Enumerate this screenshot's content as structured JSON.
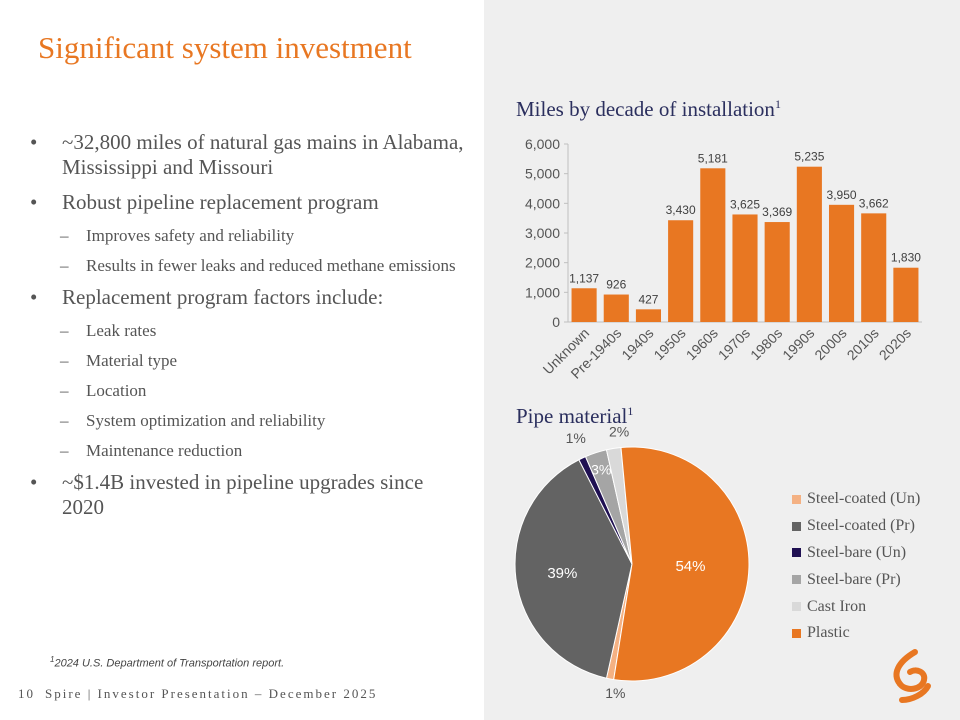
{
  "slide": {
    "title": "Significant system investment",
    "bullets": [
      {
        "level": 1,
        "text": "~32,800 miles of natural gas mains in Alabama, Mississippi and Missouri"
      },
      {
        "level": 1,
        "text": "Robust pipeline replacement program"
      },
      {
        "level": 2,
        "text": "Improves safety and reliability"
      },
      {
        "level": 2,
        "text": "Results in fewer leaks and reduced methane emissions"
      },
      {
        "level": 1,
        "text": "Replacement program factors include:"
      },
      {
        "level": 2,
        "text": "Leak rates"
      },
      {
        "level": 2,
        "text": "Material type"
      },
      {
        "level": 2,
        "text": "Location"
      },
      {
        "level": 2,
        "text": "System optimization and reliability"
      },
      {
        "level": 2,
        "text": "Maintenance reduction"
      },
      {
        "level": 1,
        "text": "~$1.4B invested in pipeline upgrades since 2020"
      }
    ],
    "footnote": {
      "marker": "1",
      "text": "2024 U.S. Department of Transportation report."
    },
    "footer": {
      "page": "10",
      "text": "Spire | Investor Presentation – December 2025"
    },
    "logo_icon": "spire-logo-icon",
    "colors": {
      "accent": "#e87722",
      "title_navy": "#2b2f5e"
    }
  },
  "chart_data": [
    {
      "type": "bar",
      "title": "Miles by decade of installation",
      "title_sup": "1",
      "categories": [
        "Unknown",
        "Pre-1940s",
        "1940s",
        "1950s",
        "1960s",
        "1970s",
        "1980s",
        "1990s",
        "2000s",
        "2010s",
        "2020s"
      ],
      "values": [
        1137,
        926,
        427,
        3430,
        5181,
        3625,
        3369,
        5235,
        3950,
        3662,
        1830
      ],
      "value_labels": [
        "1,137",
        "926",
        "427",
        "3,430",
        "5,181",
        "3,625",
        "3,369",
        "5,235",
        "3,950",
        "3,662",
        "1,830"
      ],
      "ylim": [
        0,
        6000
      ],
      "yticks": [
        0,
        1000,
        2000,
        3000,
        4000,
        5000,
        6000
      ],
      "ytick_labels": [
        "0",
        "1,000",
        "2,000",
        "3,000",
        "4,000",
        "5,000",
        "6,000"
      ],
      "xlabel": "",
      "ylabel": "",
      "grid": false,
      "color": "#e87722"
    },
    {
      "type": "pie",
      "title": "Pipe material",
      "title_sup": "1",
      "slices": [
        {
          "label": "Steel-coated (Un)",
          "value": 1,
          "display": "1%",
          "color": "#f4b183"
        },
        {
          "label": "Steel-coated (Pr)",
          "value": 39,
          "display": "39%",
          "color": "#636363"
        },
        {
          "label": "Steel-bare (Un)",
          "value": 1,
          "display": "1%",
          "color": "#1f1052"
        },
        {
          "label": "Steel-bare (Pr)",
          "value": 3,
          "display": "3%",
          "color": "#a5a5a5"
        },
        {
          "label": "Cast Iron",
          "value": 2,
          "display": "2%",
          "color": "#d9d9d9"
        },
        {
          "label": "Plastic",
          "value": 54,
          "display": "54%",
          "color": "#e87722"
        }
      ],
      "legend_position": "right"
    }
  ]
}
